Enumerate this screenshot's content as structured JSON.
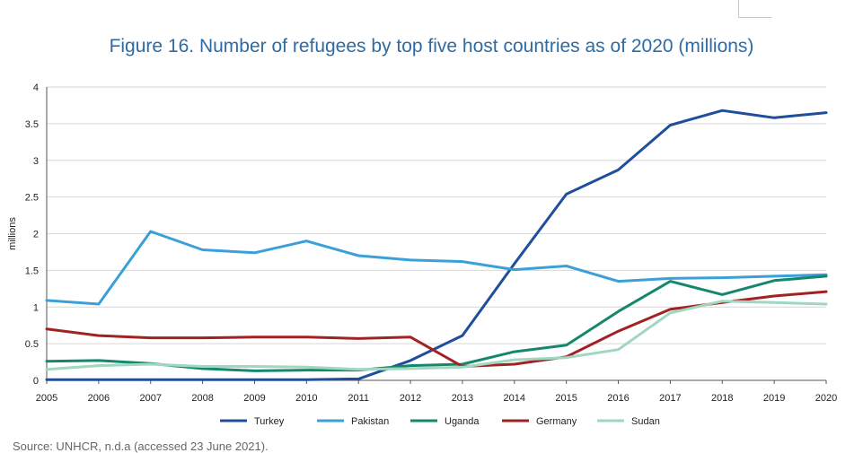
{
  "title": "Figure 16. Number of refugees by top five host countries as of 2020 (millions)",
  "source": "Source: UNHCR, n.d.a (accessed 23 June 2021).",
  "chart_data": {
    "type": "line",
    "title": "Figure 16. Number of refugees by top five host countries as of 2020 (millions)",
    "xlabel": "",
    "ylabel": "millions",
    "ylim": [
      0,
      4
    ],
    "y_ticks": [
      "0",
      "0.5",
      "1",
      "1.5",
      "2",
      "2.5",
      "3",
      "3.5",
      "4"
    ],
    "y_tick_values": [
      0,
      0.5,
      1,
      1.5,
      2,
      2.5,
      3,
      3.5,
      4
    ],
    "x": [
      "2005",
      "2006",
      "2007",
      "2008",
      "2009",
      "2010",
      "2011",
      "2012",
      "2013",
      "2014",
      "2015",
      "2016",
      "2017",
      "2018",
      "2019",
      "2020"
    ],
    "grid": "horizontal",
    "legend_position": "bottom",
    "series": [
      {
        "name": "Turkey",
        "color": "#1f4e9c",
        "values": [
          0.01,
          0.01,
          0.01,
          0.01,
          0.01,
          0.01,
          0.02,
          0.27,
          0.61,
          1.59,
          2.54,
          2.87,
          3.48,
          3.68,
          3.58,
          3.65
        ]
      },
      {
        "name": "Pakistan",
        "color": "#3aa0d8",
        "values": [
          1.09,
          1.04,
          2.03,
          1.78,
          1.74,
          1.9,
          1.7,
          1.64,
          1.62,
          1.51,
          1.56,
          1.35,
          1.39,
          1.4,
          1.42,
          1.44
        ]
      },
      {
        "name": "Uganda",
        "color": "#14876d",
        "values": [
          0.26,
          0.27,
          0.23,
          0.16,
          0.13,
          0.14,
          0.14,
          0.2,
          0.22,
          0.39,
          0.48,
          0.94,
          1.35,
          1.17,
          1.36,
          1.42
        ]
      },
      {
        "name": "Germany",
        "color": "#a02222",
        "values": [
          0.7,
          0.61,
          0.58,
          0.58,
          0.59,
          0.59,
          0.57,
          0.59,
          0.19,
          0.22,
          0.32,
          0.67,
          0.97,
          1.06,
          1.15,
          1.21
        ]
      },
      {
        "name": "Sudan",
        "color": "#9fd7bf",
        "values": [
          0.15,
          0.2,
          0.22,
          0.19,
          0.19,
          0.18,
          0.15,
          0.16,
          0.18,
          0.28,
          0.31,
          0.42,
          0.92,
          1.08,
          1.06,
          1.04
        ]
      }
    ]
  }
}
